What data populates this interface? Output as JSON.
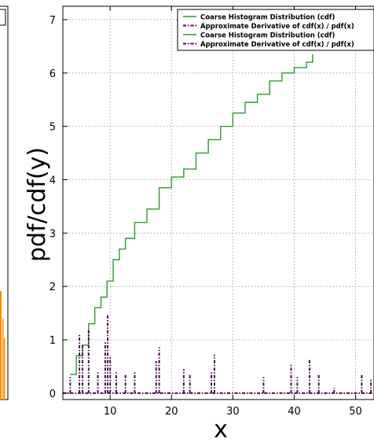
{
  "chart_data": {
    "type": "line",
    "xlabel": "x",
    "ylabel": "pdf/cdf(y)",
    "xlim": [
      2.3,
      53
    ],
    "ylim": [
      -0.12,
      7.25
    ],
    "grid": true,
    "grid_style": "dotted",
    "legend_position": "top-right",
    "xticks": [
      10,
      20,
      30,
      40,
      50
    ],
    "yticks": [
      0,
      1,
      2,
      3,
      4,
      5,
      6,
      7
    ],
    "colors": {
      "cdf": "#2e9a2e",
      "derivative": "#4b0a4b",
      "neighbor_bar": "#ff8c00"
    },
    "legend": [
      {
        "label": "Coarse Histogram Distribution (cdf)",
        "style": "solid",
        "color": "#2e9a2e"
      },
      {
        "label": "Approximate Derivative of cdf(x) / pdf(x)",
        "style": "dashdot",
        "color": "#4b0a4b"
      },
      {
        "label": "Coarse Histogram Distribution (cdf)",
        "style": "solid",
        "color": "#2e9a2e"
      },
      {
        "label": "Approximate Derivative of cdf(x) / pdf(x)",
        "style": "dashdot",
        "color": "#4b0a4b"
      }
    ],
    "series": [
      {
        "style": "step",
        "x": [
          3.5,
          4.5,
          5.5,
          6.5,
          7.5,
          8.5,
          9.5,
          10.5,
          11.5,
          12.5,
          14,
          16,
          18,
          20,
          22,
          24,
          26,
          28,
          30,
          32,
          34,
          36,
          38,
          40,
          42,
          43
        ],
        "values": [
          0.35,
          0.7,
          0.9,
          1.3,
          1.6,
          1.8,
          2.1,
          2.5,
          2.7,
          2.9,
          3.2,
          3.45,
          3.85,
          4.05,
          4.2,
          4.5,
          4.75,
          5.0,
          5.25,
          5.45,
          5.6,
          5.85,
          6.0,
          6.1,
          6.2,
          6.35
        ]
      },
      {
        "style": "dashdot",
        "x": [
          3.5,
          5.0,
          5.5,
          6.5,
          8.0,
          9.2,
          9.6,
          10.0,
          11.0,
          12.5,
          14.0,
          17.5,
          18.0,
          22.0,
          23.0,
          26.5,
          27.0,
          35.0,
          39.5,
          40.5,
          42.5,
          44.0,
          46.5,
          51.0,
          52.5
        ],
        "values": [
          0.3,
          1.1,
          0.9,
          1.2,
          0.4,
          0.95,
          1.48,
          0.7,
          0.4,
          0.35,
          0.4,
          0.6,
          0.86,
          0.45,
          0.35,
          0.4,
          0.72,
          0.3,
          0.55,
          0.3,
          0.65,
          0.35,
          0.1,
          0.35,
          0.25
        ]
      }
    ]
  }
}
